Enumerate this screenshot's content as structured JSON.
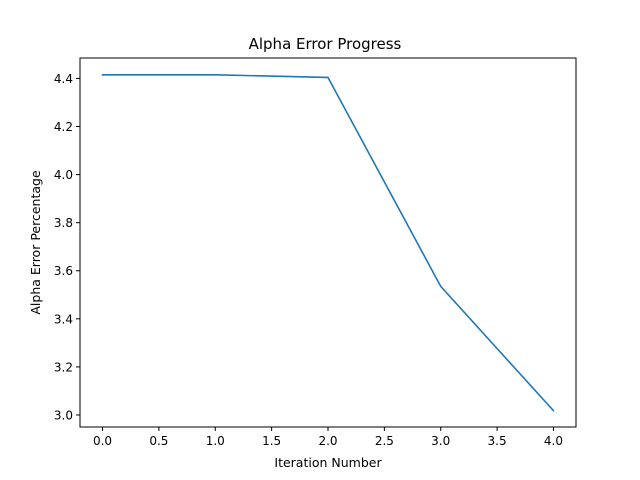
{
  "chart_data": {
    "type": "line",
    "title": "Alpha Error Progress",
    "xlabel": "Iteration Number",
    "ylabel": "Alpha Error Percentage",
    "x": [
      0,
      1,
      2,
      3,
      4
    ],
    "series": [
      {
        "values": [
          4.415,
          4.415,
          4.404,
          3.535,
          3.018
        ],
        "color": "#1f77b4"
      }
    ],
    "xlim": [
      -0.2,
      4.2
    ],
    "ylim": [
      2.95,
      4.485
    ],
    "xticks": [
      0.0,
      0.5,
      1.0,
      1.5,
      2.0,
      2.5,
      3.0,
      3.5,
      4.0
    ],
    "xtick_labels": [
      "0.0",
      "0.5",
      "1.0",
      "1.5",
      "2.0",
      "2.5",
      "3.0",
      "3.5",
      "4.0"
    ],
    "yticks": [
      3.0,
      3.2,
      3.4,
      3.6,
      3.8,
      4.0,
      4.2,
      4.4
    ],
    "ytick_labels": [
      "3.0",
      "3.2",
      "3.4",
      "3.6",
      "3.8",
      "4.0",
      "4.2",
      "4.4"
    ],
    "grid": false,
    "legend": false
  }
}
